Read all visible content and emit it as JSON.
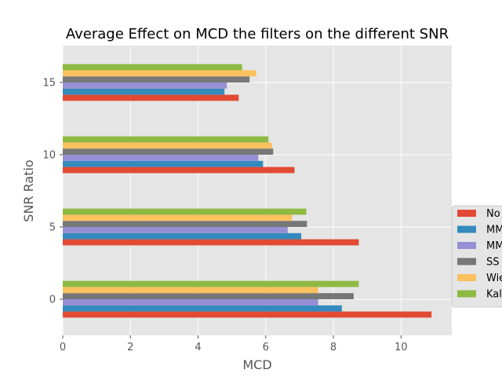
{
  "chart_data": {
    "type": "bar",
    "orientation": "horizontal",
    "title": "Average Effect on MCD the filters on the different SNR",
    "xlabel": "MCD",
    "ylabel": "SNR Ratio",
    "categories": [
      "0",
      "5",
      "10",
      "15"
    ],
    "xlim": [
      0,
      11.5
    ],
    "xticks": [
      "0",
      "2",
      "4",
      "6",
      "8",
      "10"
    ],
    "grid": true,
    "legend_position": "right (partially cut off)",
    "series": [
      {
        "name": "No",
        "color": "#E24A33",
        "values": [
          10.9,
          8.75,
          6.85,
          5.2
        ]
      },
      {
        "name": "MM",
        "color": "#348ABD",
        "values": [
          8.25,
          7.05,
          5.92,
          4.78
        ]
      },
      {
        "name": "MM",
        "color": "#988ED5",
        "values": [
          7.55,
          6.65,
          5.78,
          4.85
        ]
      },
      {
        "name": "SS",
        "color": "#777777",
        "values": [
          8.6,
          7.22,
          6.22,
          5.52
        ]
      },
      {
        "name": "Wie",
        "color": "#FBC15E",
        "values": [
          7.55,
          6.78,
          6.18,
          5.72
        ]
      },
      {
        "name": "Kal",
        "color": "#8EBA42",
        "values": [
          8.75,
          7.2,
          6.08,
          5.3
        ]
      }
    ]
  }
}
